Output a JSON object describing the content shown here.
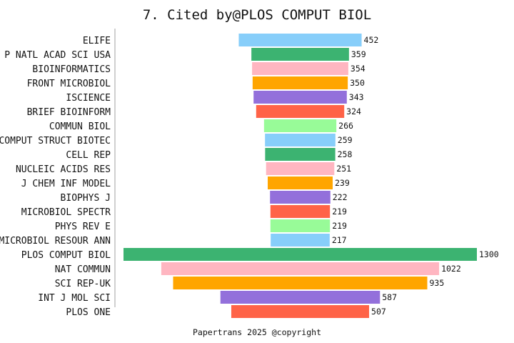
{
  "chart_data": {
    "type": "bar",
    "orientation": "horizontal-centered",
    "title": "7. Cited by@PLOS COMPUT BIOL",
    "footer": "Papertrans 2025 @copyright",
    "categories": [
      "ELIFE",
      "P NATL ACAD SCI USA",
      "BIOINFORMATICS",
      "FRONT MICROBIOL",
      "ISCIENCE",
      "BRIEF BIOINFORM",
      "COMMUN BIOL",
      "COMPUT STRUCT BIOTEC",
      "CELL REP",
      "NUCLEIC ACIDS RES",
      "J CHEM INF MODEL",
      "BIOPHYS J",
      "MICROBIOL SPECTR",
      "PHYS REV E",
      "MICROBIOL RESOUR ANN",
      "PLOS COMPUT BIOL",
      "NAT COMMUN",
      "SCI REP-UK",
      "INT J MOL SCI",
      "PLOS ONE"
    ],
    "values": [
      452,
      359,
      354,
      350,
      343,
      324,
      266,
      259,
      258,
      251,
      239,
      222,
      219,
      219,
      217,
      1300,
      1022,
      935,
      587,
      507
    ],
    "colors": [
      "#87CEFA",
      "#3CB371",
      "#FFB6C1",
      "#FFA500",
      "#9370DB",
      "#FF6347",
      "#98FB98"
    ],
    "grid": false,
    "legend": "none"
  }
}
